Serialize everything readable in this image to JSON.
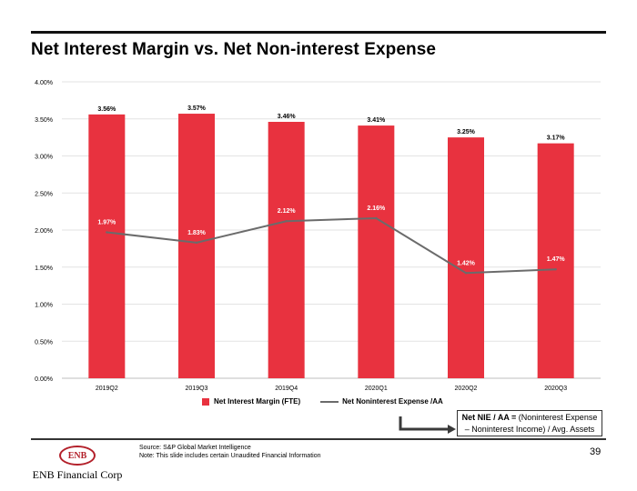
{
  "slide": {
    "title": "Net Interest Margin vs. Net Non-interest Expense",
    "source": "Source: S&P Global Market Intelligence",
    "footnote": "Note:  This slide includes certain Unaudited Financial Information",
    "page_number": "39",
    "logo_text": "ENB",
    "company_name": "ENB Financial Corp",
    "definition_bold": "Net NIE / AA =",
    "definition_line1": " (Noninterest Expense",
    "definition_line2": "– Noninterest Income) / Avg. Assets"
  },
  "chart_data": {
    "type": "bar",
    "categories": [
      "2019Q2",
      "2019Q3",
      "2019Q4",
      "2020Q1",
      "2020Q2",
      "2020Q3"
    ],
    "series": [
      {
        "name": "Net Interest Margin (FTE)",
        "type": "bar",
        "values": [
          3.56,
          3.57,
          3.46,
          3.41,
          3.25,
          3.17
        ],
        "labels": [
          "3.56%",
          "3.57%",
          "3.46%",
          "3.41%",
          "3.25%",
          "3.17%"
        ],
        "color": "#e8323f"
      },
      {
        "name": "Net Noninterest Expense /AA",
        "type": "line",
        "values": [
          1.97,
          1.83,
          2.12,
          2.16,
          1.42,
          1.47
        ],
        "labels": [
          "1.97%",
          "1.83%",
          "2.12%",
          "2.16%",
          "1.42%",
          "1.47%"
        ],
        "color": "#6b6b6b"
      }
    ],
    "yticks": [
      "0.00%",
      "0.50%",
      "1.00%",
      "1.50%",
      "2.00%",
      "2.50%",
      "3.00%",
      "3.50%",
      "4.00%"
    ],
    "ylim": [
      0,
      4
    ],
    "grid": true,
    "legend_position": "bottom"
  }
}
